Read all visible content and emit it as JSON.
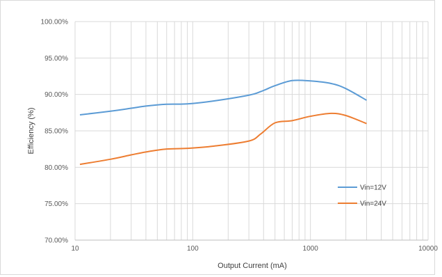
{
  "chart_data": {
    "type": "line",
    "xlabel": "Output Current (mA)",
    "ylabel": "Efficiency (%)",
    "x_scale": "log",
    "xlim": [
      10,
      10000
    ],
    "ylim": [
      70,
      100
    ],
    "grid": {
      "x_minor": true,
      "y_major": true
    },
    "legend": {
      "placement": "right"
    },
    "x_ticks": [
      "10",
      "100",
      "1000",
      "10000"
    ],
    "y_ticks": [
      "70.00%",
      "75.00%",
      "80.00%",
      "85.00%",
      "90.00%",
      "95.00%",
      "100.00%"
    ],
    "series": [
      {
        "name": "Vin=12V",
        "color": "#5B9BD5",
        "x": [
          11,
          20,
          30,
          40,
          60,
          90,
          150,
          300,
          380,
          500,
          700,
          1000,
          1500,
          2000,
          3000
        ],
        "y": [
          87.2,
          87.7,
          88.1,
          88.4,
          88.65,
          88.7,
          89.1,
          89.9,
          90.4,
          91.2,
          91.9,
          91.85,
          91.5,
          90.8,
          89.2
        ]
      },
      {
        "name": "Vin=24V",
        "color": "#ED7D31",
        "x": [
          11,
          20,
          30,
          40,
          60,
          90,
          150,
          300,
          380,
          500,
          700,
          1000,
          1500,
          2000,
          3000
        ],
        "y": [
          80.4,
          81.1,
          81.7,
          82.1,
          82.5,
          82.6,
          82.9,
          83.6,
          84.6,
          86.1,
          86.4,
          87.0,
          87.4,
          87.1,
          86.0
        ]
      }
    ]
  }
}
